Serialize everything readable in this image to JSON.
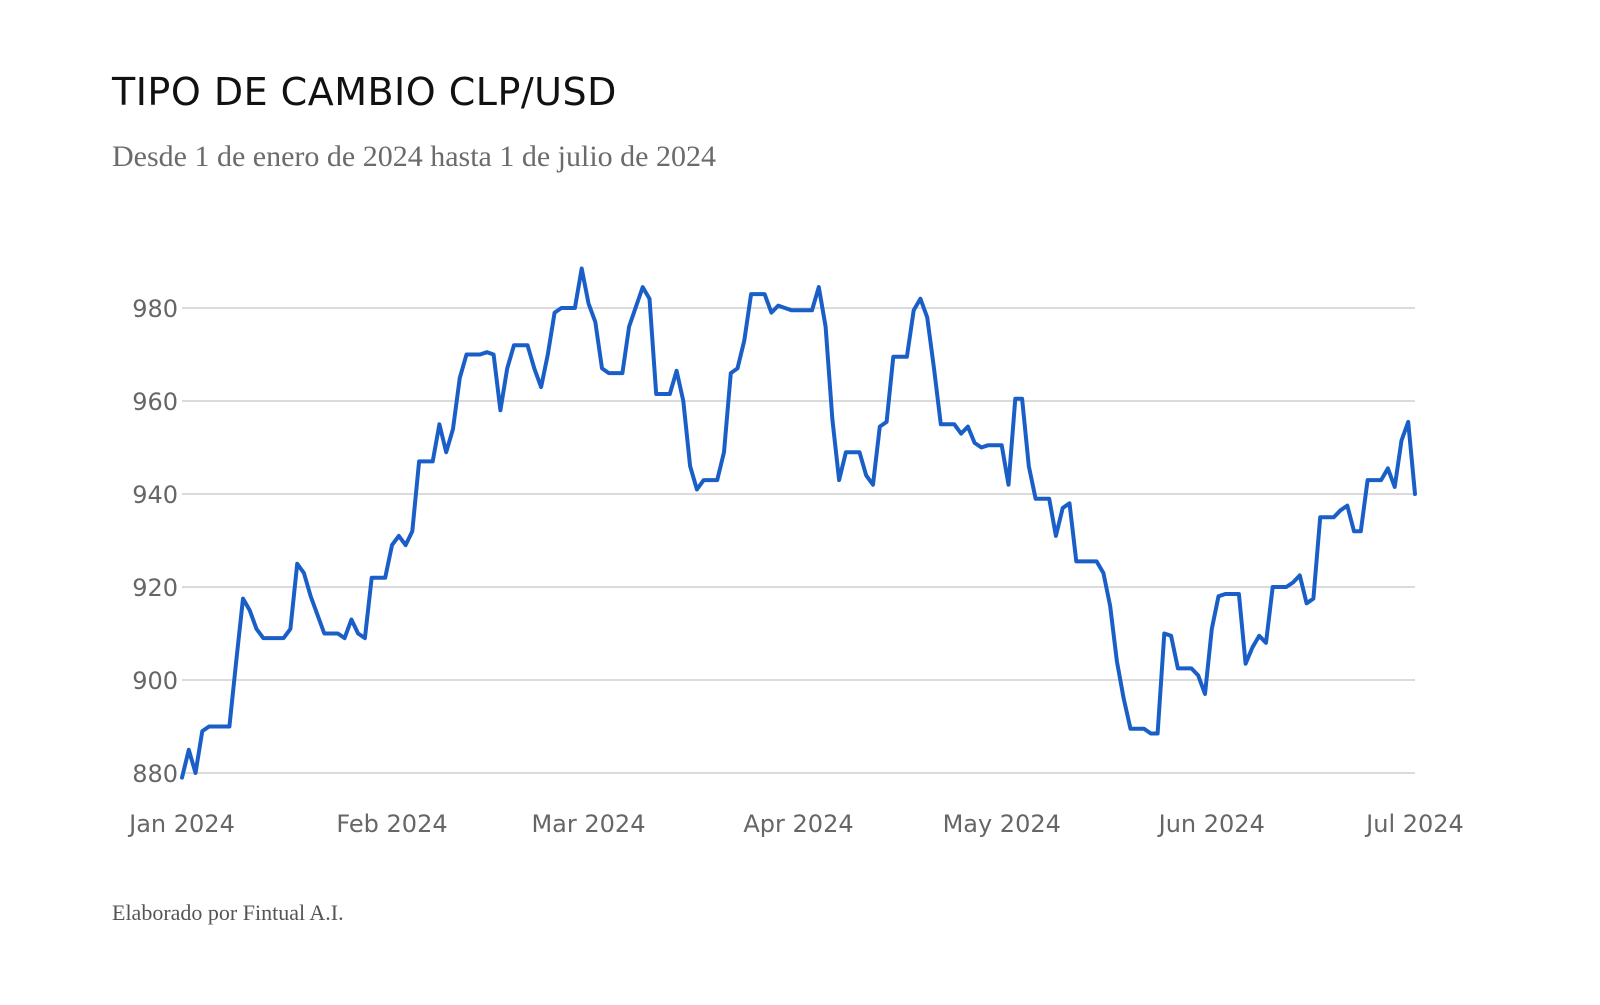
{
  "header": {
    "title": "TIPO DE CAMBIO CLP/USD",
    "subtitle": "Desde 1 de enero de 2024 hasta 1 de julio de 2024"
  },
  "footer": {
    "text": "Elaborado por Fintual A.I."
  },
  "colors": {
    "line": "#1a5fc7",
    "grid": "#cfcfcf",
    "tick_text": "#666666"
  },
  "chart_data": {
    "type": "line",
    "title": "TIPO DE CAMBIO CLP/USD",
    "subtitle": "Desde 1 de enero de 2024 hasta 1 de julio de 2024",
    "xlabel": "",
    "ylabel": "",
    "xlim": [
      "2024-01-01",
      "2024-07-01"
    ],
    "ylim": [
      880,
      990
    ],
    "y_ticks": [
      880,
      900,
      920,
      940,
      960,
      980
    ],
    "x_ticks": [
      {
        "date": "2024-01-01",
        "label": "Jan 2024"
      },
      {
        "date": "2024-02-01",
        "label": "Feb 2024"
      },
      {
        "date": "2024-03-01",
        "label": "Mar 2024"
      },
      {
        "date": "2024-04-01",
        "label": "Apr 2024"
      },
      {
        "date": "2024-05-01",
        "label": "May 2024"
      },
      {
        "date": "2024-06-01",
        "label": "Jun 2024"
      },
      {
        "date": "2024-07-01",
        "label": "Jul 2024"
      }
    ],
    "grid": true,
    "legend": "none",
    "series": [
      {
        "points": [
          [
            "2024-01-01",
            879
          ],
          [
            "2024-01-02",
            885
          ],
          [
            "2024-01-03",
            880
          ],
          [
            "2024-01-04",
            889
          ],
          [
            "2024-01-05",
            890
          ],
          [
            "2024-01-08",
            890
          ],
          [
            "2024-01-09",
            904
          ],
          [
            "2024-01-10",
            917.5
          ],
          [
            "2024-01-11",
            915
          ],
          [
            "2024-01-12",
            911
          ],
          [
            "2024-01-13",
            909
          ],
          [
            "2024-01-16",
            909
          ],
          [
            "2024-01-17",
            911
          ],
          [
            "2024-01-18",
            925
          ],
          [
            "2024-01-19",
            923
          ],
          [
            "2024-01-20",
            918
          ],
          [
            "2024-01-22",
            910
          ],
          [
            "2024-01-24",
            910
          ],
          [
            "2024-01-25",
            909
          ],
          [
            "2024-01-26",
            913
          ],
          [
            "2024-01-27",
            910
          ],
          [
            "2024-01-28",
            909
          ],
          [
            "2024-01-29",
            922
          ],
          [
            "2024-01-31",
            922
          ],
          [
            "2024-02-01",
            929
          ],
          [
            "2024-02-02",
            931
          ],
          [
            "2024-02-03",
            929
          ],
          [
            "2024-02-04",
            932
          ],
          [
            "2024-02-05",
            947
          ],
          [
            "2024-02-07",
            947
          ],
          [
            "2024-02-08",
            955
          ],
          [
            "2024-02-09",
            949
          ],
          [
            "2024-02-10",
            954
          ],
          [
            "2024-02-11",
            965
          ],
          [
            "2024-02-12",
            970
          ],
          [
            "2024-02-14",
            970
          ],
          [
            "2024-02-15",
            970.5
          ],
          [
            "2024-02-16",
            970
          ],
          [
            "2024-02-17",
            958
          ],
          [
            "2024-02-18",
            967
          ],
          [
            "2024-02-19",
            972
          ],
          [
            "2024-02-21",
            972
          ],
          [
            "2024-02-22",
            967
          ],
          [
            "2024-02-23",
            963
          ],
          [
            "2024-02-24",
            970
          ],
          [
            "2024-02-25",
            979
          ],
          [
            "2024-02-26",
            980
          ],
          [
            "2024-02-28",
            980
          ],
          [
            "2024-02-29",
            988.5
          ],
          [
            "2024-03-01",
            981
          ],
          [
            "2024-03-02",
            977
          ],
          [
            "2024-03-03",
            967
          ],
          [
            "2024-03-04",
            966
          ],
          [
            "2024-03-06",
            966
          ],
          [
            "2024-03-07",
            976
          ],
          [
            "2024-03-09",
            984.5
          ],
          [
            "2024-03-10",
            982
          ],
          [
            "2024-03-11",
            961.5
          ],
          [
            "2024-03-13",
            961.5
          ],
          [
            "2024-03-14",
            966.5
          ],
          [
            "2024-03-15",
            960
          ],
          [
            "2024-03-16",
            946
          ],
          [
            "2024-03-17",
            941
          ],
          [
            "2024-03-18",
            943
          ],
          [
            "2024-03-20",
            943
          ],
          [
            "2024-03-21",
            949
          ],
          [
            "2024-03-22",
            966
          ],
          [
            "2024-03-23",
            967
          ],
          [
            "2024-03-24",
            973
          ],
          [
            "2024-03-25",
            983
          ],
          [
            "2024-03-27",
            983
          ],
          [
            "2024-03-28",
            979
          ],
          [
            "2024-03-29",
            980.5
          ],
          [
            "2024-03-30",
            980
          ],
          [
            "2024-03-31",
            979.5
          ],
          [
            "2024-04-03",
            979.5
          ],
          [
            "2024-04-04",
            984.5
          ],
          [
            "2024-04-05",
            976
          ],
          [
            "2024-04-06",
            956
          ],
          [
            "2024-04-07",
            943
          ],
          [
            "2024-04-08",
            949
          ],
          [
            "2024-04-10",
            949
          ],
          [
            "2024-04-11",
            944
          ],
          [
            "2024-04-12",
            942
          ],
          [
            "2024-04-13",
            954.5
          ],
          [
            "2024-04-14",
            955.5
          ],
          [
            "2024-04-15",
            969.5
          ],
          [
            "2024-04-17",
            969.5
          ],
          [
            "2024-04-18",
            979.5
          ],
          [
            "2024-04-19",
            982
          ],
          [
            "2024-04-20",
            978
          ],
          [
            "2024-04-21",
            967
          ],
          [
            "2024-04-22",
            955
          ],
          [
            "2024-04-24",
            955
          ],
          [
            "2024-04-25",
            953
          ],
          [
            "2024-04-26",
            954.5
          ],
          [
            "2024-04-27",
            951
          ],
          [
            "2024-04-28",
            950
          ],
          [
            "2024-04-29",
            950.5
          ],
          [
            "2024-05-01",
            950.5
          ],
          [
            "2024-05-02",
            942
          ],
          [
            "2024-05-03",
            960.5
          ],
          [
            "2024-05-04",
            960.5
          ],
          [
            "2024-05-05",
            946
          ],
          [
            "2024-05-06",
            939
          ],
          [
            "2024-05-08",
            939
          ],
          [
            "2024-05-09",
            931
          ],
          [
            "2024-05-10",
            937
          ],
          [
            "2024-05-11",
            938
          ],
          [
            "2024-05-12",
            925.5
          ],
          [
            "2024-05-15",
            925.5
          ],
          [
            "2024-05-16",
            923
          ],
          [
            "2024-05-17",
            916
          ],
          [
            "2024-05-18",
            904
          ],
          [
            "2024-05-19",
            896
          ],
          [
            "2024-05-20",
            889.5
          ],
          [
            "2024-05-22",
            889.5
          ],
          [
            "2024-05-23",
            888.5
          ],
          [
            "2024-05-24",
            888.5
          ],
          [
            "2024-05-25",
            910
          ],
          [
            "2024-05-26",
            909.5
          ],
          [
            "2024-05-27",
            902.5
          ],
          [
            "2024-05-29",
            902.5
          ],
          [
            "2024-05-30",
            901
          ],
          [
            "2024-05-31",
            897
          ],
          [
            "2024-06-01",
            911
          ],
          [
            "2024-06-02",
            918
          ],
          [
            "2024-06-03",
            918.5
          ],
          [
            "2024-06-05",
            918.5
          ],
          [
            "2024-06-06",
            903.5
          ],
          [
            "2024-06-07",
            907
          ],
          [
            "2024-06-08",
            909.5
          ],
          [
            "2024-06-09",
            908
          ],
          [
            "2024-06-10",
            920
          ],
          [
            "2024-06-12",
            920
          ],
          [
            "2024-06-13",
            921
          ],
          [
            "2024-06-14",
            922.5
          ],
          [
            "2024-06-15",
            916.5
          ],
          [
            "2024-06-16",
            917.5
          ],
          [
            "2024-06-17",
            935
          ],
          [
            "2024-06-19",
            935
          ],
          [
            "2024-06-20",
            936.5
          ],
          [
            "2024-06-21",
            937.5
          ],
          [
            "2024-06-22",
            932
          ],
          [
            "2024-06-23",
            932
          ],
          [
            "2024-06-24",
            943
          ],
          [
            "2024-06-26",
            943
          ],
          [
            "2024-06-27",
            945.5
          ],
          [
            "2024-06-28",
            941.5
          ],
          [
            "2024-06-29",
            951.5
          ],
          [
            "2024-06-30",
            955.5
          ],
          [
            "2024-07-01",
            940
          ]
        ]
      }
    ]
  }
}
